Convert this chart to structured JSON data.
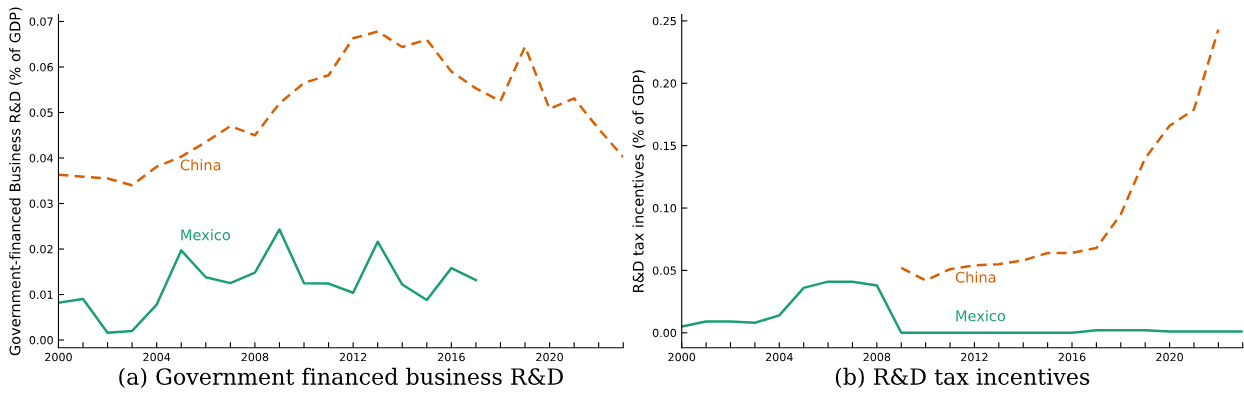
{
  "chart_data": [
    {
      "type": "line",
      "title": "(a) Government financed business R&D",
      "ylabel": "Government-financed Business R&D (% of GDP)",
      "xlim": [
        2000,
        2023
      ],
      "ylim": [
        -0.0017,
        0.0715
      ],
      "xticks": [
        2000,
        {
          "value": 2001,
          "label": null
        },
        {
          "value": 2002,
          "label": null
        },
        {
          "value": 2003,
          "label": null
        },
        2004,
        {
          "value": 2005,
          "label": null
        },
        {
          "value": 2006,
          "label": null
        },
        {
          "value": 2007,
          "label": null
        },
        2008,
        {
          "value": 2009,
          "label": null
        },
        {
          "value": 2010,
          "label": null
        },
        {
          "value": 2011,
          "label": null
        },
        2012,
        {
          "value": 2013,
          "label": null
        },
        {
          "value": 2014,
          "label": null
        },
        {
          "value": 2015,
          "label": null
        },
        2016,
        {
          "value": 2017,
          "label": null
        },
        {
          "value": 2018,
          "label": null
        },
        {
          "value": 2019,
          "label": null
        },
        2020,
        {
          "value": 2021,
          "label": null
        },
        {
          "value": 2022,
          "label": null
        },
        {
          "value": 2023,
          "label": null
        }
      ],
      "yticks": [
        {
          "value": 0,
          "label": "0.00"
        },
        {
          "value": 0.01,
          "label": "0.01"
        },
        {
          "value": 0.02,
          "label": "0.02"
        },
        {
          "value": 0.03,
          "label": "0.03"
        },
        {
          "value": 0.04,
          "label": "0.04"
        },
        {
          "value": 0.05,
          "label": "0.05"
        },
        {
          "value": 0.06,
          "label": "0.06"
        },
        {
          "value": 0.07,
          "label": "0.07"
        }
      ],
      "grid": false,
      "series": [
        {
          "name": "China",
          "color": "#d95f02",
          "line_style": "dashed",
          "x": [
            2000,
            2001,
            2002,
            2003,
            2004,
            2005,
            2006,
            2007,
            2008,
            2009,
            2010,
            2011,
            2012,
            2013,
            2014,
            2015,
            2016,
            2017,
            2018,
            2019,
            2020,
            2021,
            2022,
            2023
          ],
          "values": [
            0.0363,
            0.0359,
            0.0355,
            0.034,
            0.0381,
            0.0403,
            0.0435,
            0.047,
            0.045,
            0.052,
            0.0565,
            0.0582,
            0.0663,
            0.0678,
            0.0644,
            0.066,
            0.059,
            0.0553,
            0.0525,
            0.0645,
            0.0508,
            0.0531,
            0.0464,
            0.0402
          ]
        },
        {
          "name": "Mexico",
          "color": "#1b9e77",
          "line_style": "solid",
          "x": [
            2000,
            2001,
            2002,
            2003,
            2004,
            2005,
            2006,
            2007,
            2008,
            2009,
            2010,
            2011,
            2012,
            2013,
            2014,
            2015,
            2016,
            2017
          ],
          "values": [
            0.0082,
            0.009,
            0.0016,
            0.002,
            0.0078,
            0.0197,
            0.0138,
            0.0125,
            0.0148,
            0.0243,
            0.0125,
            0.0124,
            0.0104,
            0.0216,
            0.0122,
            0.0088,
            0.0158,
            0.0132
          ]
        }
      ],
      "legend": false
    },
    {
      "type": "line",
      "title": "(b) R&D tax incentives",
      "ylabel": "R&D tax incentives (% of GDP)",
      "xlim": [
        2000,
        2023
      ],
      "ylim": [
        -0.012,
        0.255
      ],
      "xticks": [
        2000,
        {
          "value": 2001,
          "label": null
        },
        {
          "value": 2002,
          "label": null
        },
        {
          "value": 2003,
          "label": null
        },
        2004,
        {
          "value": 2005,
          "label": null
        },
        {
          "value": 2006,
          "label": null
        },
        {
          "value": 2007,
          "label": null
        },
        2008,
        {
          "value": 2009,
          "label": null
        },
        {
          "value": 2010,
          "label": null
        },
        {
          "value": 2011,
          "label": null
        },
        2012,
        {
          "value": 2013,
          "label": null
        },
        {
          "value": 2014,
          "label": null
        },
        {
          "value": 2015,
          "label": null
        },
        2016,
        {
          "value": 2017,
          "label": null
        },
        {
          "value": 2018,
          "label": null
        },
        {
          "value": 2019,
          "label": null
        },
        2020,
        {
          "value": 2021,
          "label": null
        },
        {
          "value": 2022,
          "label": null
        },
        {
          "value": 2023,
          "label": null
        }
      ],
      "yticks": [
        {
          "value": 0,
          "label": "0.00"
        },
        {
          "value": 0.05,
          "label": "0.05"
        },
        {
          "value": 0.1,
          "label": "0.10"
        },
        {
          "value": 0.15,
          "label": "0.15"
        },
        {
          "value": 0.2,
          "label": "0.20"
        },
        {
          "value": 0.25,
          "label": "0.25"
        }
      ],
      "grid": false,
      "series": [
        {
          "name": "China",
          "color": "#d95f02",
          "line_style": "dashed",
          "x": [
            2009,
            2010,
            2011,
            2012,
            2013,
            2014,
            2015,
            2016,
            2017,
            2018,
            2019,
            2020,
            2021,
            2022
          ],
          "values": [
            0.052,
            0.042,
            0.051,
            0.054,
            0.055,
            0.058,
            0.064,
            0.064,
            0.068,
            0.095,
            0.14,
            0.166,
            0.179,
            0.243
          ]
        },
        {
          "name": "Mexico",
          "color": "#1b9e77",
          "line_style": "solid",
          "x": [
            2000,
            2001,
            2002,
            2003,
            2004,
            2005,
            2006,
            2007,
            2008,
            2009,
            2010,
            2011,
            2012,
            2013,
            2014,
            2015,
            2016,
            2017,
            2018,
            2019,
            2020,
            2021,
            2022,
            2023
          ],
          "values": [
            0.005,
            0.009,
            0.009,
            0.008,
            0.014,
            0.036,
            0.041,
            0.041,
            0.038,
            0,
            0,
            0,
            0,
            0,
            0,
            0,
            0,
            0.002,
            0.002,
            0.002,
            0.001,
            0.001,
            0.001,
            0.001
          ]
        }
      ],
      "legend": false
    }
  ]
}
